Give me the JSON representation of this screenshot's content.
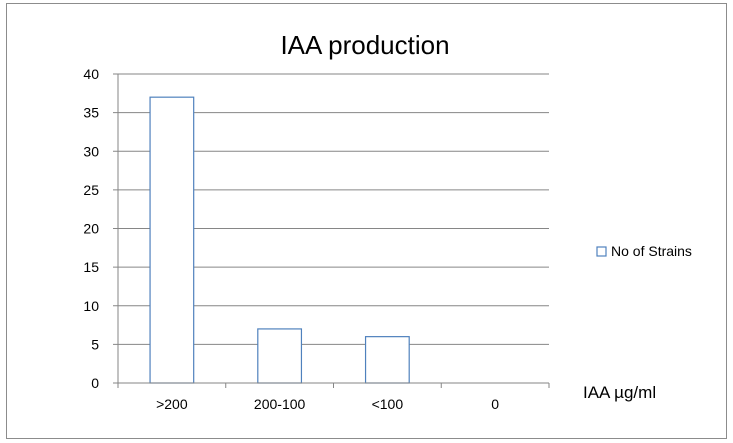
{
  "chart_data": {
    "type": "bar",
    "title": "IAA production",
    "xlabel": "IAA µg/ml",
    "ylabel": "",
    "categories": [
      ">200",
      "200-100",
      "<100",
      "0"
    ],
    "series": [
      {
        "name": "No of Strains",
        "values": [
          37,
          7,
          6,
          0
        ],
        "fill": "#ffffff",
        "stroke": "#4f81bd"
      }
    ],
    "ylim": [
      0,
      40
    ],
    "yticks": [
      0,
      5,
      10,
      15,
      20,
      25,
      30,
      35,
      40
    ],
    "grid": true,
    "legend": "right"
  },
  "colors": {
    "gridline": "#868686",
    "axis": "#868686",
    "frame": "#8c8c8c",
    "bar_border": "#4f81bd"
  }
}
